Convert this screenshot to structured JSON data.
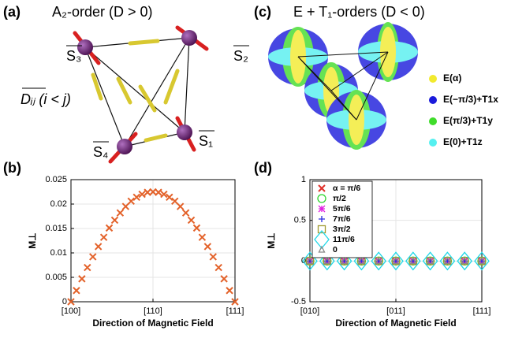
{
  "panel_a": {
    "label": "(a)",
    "title": "A₂-order (D > 0)",
    "spins": [
      "S₃",
      "S₂",
      "S₄",
      "S₁"
    ],
    "dmi": "Dᵢⱼ (i < j)"
  },
  "panel_c": {
    "label": "(c)",
    "title": "E + T₁-orders (D < 0)",
    "legend": [
      {
        "name": "E(α)",
        "color": "#f2ea2e"
      },
      {
        "name": "E(−π/3)+T1x",
        "color": "#1a1adb"
      },
      {
        "name": "E(π/3)+T1y",
        "color": "#3fdc2a"
      },
      {
        "name": "E(0)+T1z",
        "color": "#55f0f0"
      }
    ]
  },
  "chart_data": [
    {
      "label": "(b)",
      "type": "scatter",
      "marker": "x",
      "color": "#e3622a",
      "x": [
        0,
        1,
        2,
        3,
        4,
        5,
        6,
        7,
        8,
        9,
        10,
        11,
        12,
        13,
        14,
        15,
        16,
        17,
        18,
        19,
        20,
        21,
        22,
        23,
        24,
        25,
        26,
        27,
        28,
        29,
        30
      ],
      "values": [
        0,
        0.0023,
        0.0047,
        0.007,
        0.0092,
        0.0113,
        0.0132,
        0.0151,
        0.0167,
        0.0182,
        0.0195,
        0.0206,
        0.0214,
        0.022,
        0.0224,
        0.0225,
        0.0224,
        0.022,
        0.0214,
        0.0206,
        0.0195,
        0.0182,
        0.0167,
        0.0151,
        0.0132,
        0.0113,
        0.0092,
        0.007,
        0.0047,
        0.0023,
        0
      ],
      "xlim": [
        0,
        30
      ],
      "xticks": [
        {
          "value": 0,
          "label": "[100]"
        },
        {
          "value": 15,
          "label": "[110]"
        },
        {
          "value": 30,
          "label": "[111]"
        }
      ],
      "ylim": [
        0,
        0.025
      ],
      "yticks": [
        0,
        0.005,
        0.01,
        0.015,
        0.02,
        0.025
      ],
      "xlabel": "Direction of Magnetic Field",
      "ylabel": "M⊥",
      "grid": true
    },
    {
      "label": "(d)",
      "type": "scatter",
      "legend": "upper left",
      "x": [
        0,
        1,
        2,
        3,
        4,
        5,
        6,
        7,
        8,
        9,
        10
      ],
      "series": [
        {
          "name": "α = π/6",
          "color": "#e0302a",
          "marker": "x",
          "values": [
            0,
            0,
            0,
            0,
            0,
            0,
            0,
            0,
            0,
            0,
            0
          ]
        },
        {
          "name": "π/2",
          "color": "#2bd42b",
          "marker": "o",
          "values": [
            0,
            0,
            0,
            0,
            0,
            0,
            0,
            0,
            0,
            0,
            0
          ]
        },
        {
          "name": "5π/6",
          "color": "#e020e0",
          "marker": "*",
          "values": [
            0,
            0,
            0,
            0,
            0,
            0,
            0,
            0,
            0,
            0,
            0
          ]
        },
        {
          "name": "7π/6",
          "color": "#2a2ae0",
          "marker": "+",
          "values": [
            0,
            0,
            0,
            0,
            0,
            0,
            0,
            0,
            0,
            0,
            0
          ]
        },
        {
          "name": "3π/2",
          "color": "#a09a30",
          "marker": "s",
          "values": [
            0,
            0,
            0,
            0,
            0,
            0,
            0,
            0,
            0,
            0,
            0
          ]
        },
        {
          "name": "11π/6",
          "color": "#20d8e8",
          "marker": "D",
          "values": [
            0,
            0,
            0,
            0,
            0,
            0,
            0,
            0,
            0,
            0,
            0
          ]
        },
        {
          "name": "0",
          "color": "#888888",
          "marker": "^",
          "values": [
            0,
            0,
            0,
            0,
            0,
            0,
            0,
            0,
            0,
            0,
            0
          ]
        }
      ],
      "xlim": [
        0,
        10
      ],
      "xticks": [
        {
          "value": 0,
          "label": "[010]"
        },
        {
          "value": 5,
          "label": "[011]"
        },
        {
          "value": 10,
          "label": "[111]"
        }
      ],
      "ylim": [
        -0.5,
        1
      ],
      "yticks": [
        -0.5,
        0,
        0.5,
        1
      ],
      "xlabel": "Direction of Magnetic Field",
      "ylabel": "M⊥",
      "grid": true
    }
  ]
}
